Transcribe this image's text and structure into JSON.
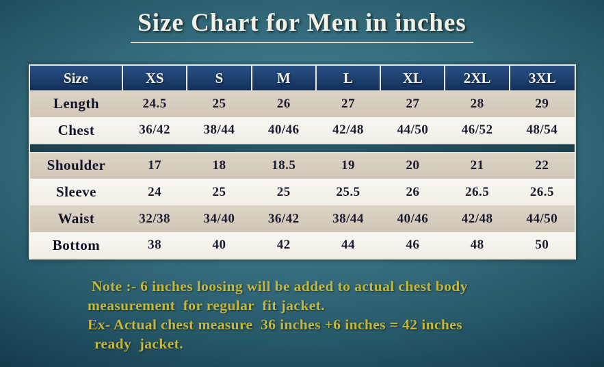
{
  "title": "Size Chart for Men in inches",
  "chart_data": {
    "type": "table",
    "columns": [
      "Size",
      "XS",
      "S",
      "M",
      "L",
      "XL",
      "2XL",
      "3XL"
    ],
    "rows": [
      {
        "label": "Length",
        "values": [
          "24.5",
          "25",
          "26",
          "27",
          "27",
          "28",
          "29"
        ]
      },
      {
        "label": "Chest",
        "values": [
          "36/42",
          "38/44",
          "40/46",
          "42/48",
          "44/50",
          "46/52",
          "48/54"
        ]
      },
      {
        "label": "Shoulder",
        "values": [
          "17",
          "18",
          "18.5",
          "19",
          "20",
          "21",
          "22"
        ]
      },
      {
        "label": "Sleeve",
        "values": [
          "24",
          "25",
          "25",
          "25.5",
          "26",
          "26.5",
          "26.5"
        ]
      },
      {
        "label": "Waist",
        "values": [
          "32/38",
          "34/40",
          "36/42",
          "38/44",
          "40/46",
          "42/48",
          "44/50"
        ]
      },
      {
        "label": "Bottom",
        "values": [
          "38",
          "40",
          "42",
          "44",
          "46",
          "48",
          "50"
        ]
      }
    ],
    "group_break_after_row": 1
  },
  "note": {
    "lines": [
      "Note :- 6 inches loosing will be added to actual chest body",
      "measurement  for regular  fit jacket.",
      "Ex- Actual chest measure  36 inches +6 inches = 42 inches",
      "ready  jacket."
    ]
  },
  "colors": {
    "header_bg": "#1d3f6e",
    "row_beige": "#d6cebf",
    "row_white": "#f6f4ef",
    "note_text": "#c2b83f",
    "title_text": "#f3f0e6"
  }
}
